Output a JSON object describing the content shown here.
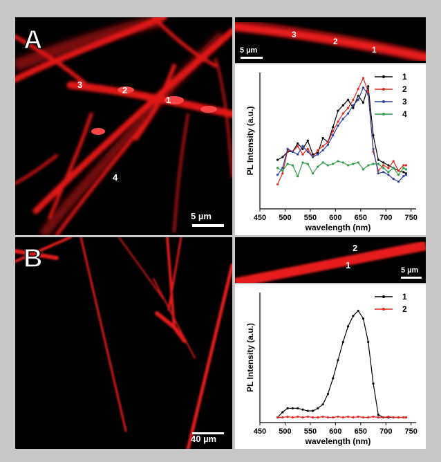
{
  "panel_a": {
    "letter": "A",
    "scale_main": "5 µm",
    "scale_inset": "5 µm",
    "main_points": [
      "3",
      "2",
      "1",
      "4"
    ],
    "inset_points": [
      "3",
      "2",
      "1"
    ]
  },
  "panel_b": {
    "letter": "B",
    "scale_main": "40 µm",
    "scale_inset": "5 µm",
    "inset_points": [
      "2",
      "1"
    ]
  },
  "chart_data": [
    {
      "type": "line",
      "xlabel": "wavelength (nm)",
      "ylabel": "PL Intensity (a.u.)",
      "xlim": [
        450,
        760
      ],
      "ylim": [
        0,
        1
      ],
      "xticks": [
        450,
        500,
        550,
        600,
        650,
        700,
        750
      ],
      "legend_position": "top-right",
      "series": [
        {
          "name": "1",
          "color": "#000000",
          "x": [
            485,
            495,
            505,
            515,
            525,
            535,
            545,
            555,
            565,
            575,
            585,
            595,
            605,
            615,
            625,
            635,
            645,
            655,
            665,
            675,
            685,
            695,
            705,
            715,
            725,
            735,
            740
          ],
          "y": [
            0.36,
            0.38,
            0.42,
            0.42,
            0.48,
            0.44,
            0.5,
            0.4,
            0.41,
            0.52,
            0.49,
            0.6,
            0.72,
            0.76,
            0.8,
            0.74,
            0.83,
            0.78,
            0.9,
            0.54,
            0.36,
            0.34,
            0.32,
            0.3,
            0.28,
            0.27,
            0.26
          ]
        },
        {
          "name": "2",
          "color": "#e0281e",
          "x": [
            485,
            495,
            505,
            515,
            525,
            535,
            545,
            555,
            565,
            575,
            585,
            595,
            605,
            615,
            625,
            635,
            645,
            655,
            665,
            675,
            685,
            695,
            705,
            715,
            725,
            735,
            740
          ],
          "y": [
            0.18,
            0.26,
            0.43,
            0.42,
            0.46,
            0.4,
            0.44,
            0.38,
            0.43,
            0.46,
            0.49,
            0.57,
            0.64,
            0.7,
            0.74,
            0.8,
            0.88,
            0.96,
            0.86,
            0.42,
            0.28,
            0.32,
            0.3,
            0.35,
            0.28,
            0.32,
            0.32
          ]
        },
        {
          "name": "3",
          "color": "#2f3f9e",
          "x": [
            485,
            495,
            505,
            515,
            525,
            535,
            545,
            555,
            565,
            575,
            585,
            595,
            605,
            615,
            625,
            635,
            645,
            655,
            665,
            675,
            685,
            695,
            705,
            715,
            725,
            735,
            740
          ],
          "y": [
            0.25,
            0.3,
            0.44,
            0.42,
            0.4,
            0.46,
            0.42,
            0.38,
            0.4,
            0.43,
            0.47,
            0.54,
            0.61,
            0.66,
            0.7,
            0.76,
            0.8,
            0.89,
            0.84,
            0.44,
            0.26,
            0.27,
            0.25,
            0.22,
            0.2,
            0.24,
            0.25
          ]
        },
        {
          "name": "4",
          "color": "#2e9c48",
          "x": [
            485,
            495,
            505,
            515,
            525,
            535,
            545,
            555,
            565,
            575,
            585,
            595,
            605,
            615,
            625,
            635,
            645,
            655,
            665,
            675,
            685,
            695,
            705,
            715,
            725,
            735,
            740
          ],
          "y": [
            0.3,
            0.28,
            0.33,
            0.32,
            0.24,
            0.34,
            0.33,
            0.26,
            0.31,
            0.34,
            0.32,
            0.33,
            0.35,
            0.34,
            0.32,
            0.33,
            0.34,
            0.29,
            0.32,
            0.33,
            0.33,
            0.3,
            0.27,
            0.3,
            0.25,
            0.3,
            0.29
          ]
        }
      ]
    },
    {
      "type": "line",
      "xlabel": "wavelength (nm)",
      "ylabel": "PL Intensity (a.u.)",
      "xlim": [
        450,
        760
      ],
      "ylim": [
        0,
        1
      ],
      "xticks": [
        450,
        500,
        550,
        600,
        650,
        700,
        750
      ],
      "legend_position": "top-right",
      "series": [
        {
          "name": "1",
          "color": "#000000",
          "x": [
            485,
            495,
            505,
            515,
            525,
            535,
            545,
            555,
            565,
            575,
            585,
            595,
            605,
            615,
            625,
            635,
            645,
            655,
            665,
            675,
            685,
            695,
            705,
            715,
            725,
            735,
            740
          ],
          "y": [
            0.04,
            0.08,
            0.11,
            0.11,
            0.11,
            0.1,
            0.09,
            0.09,
            0.11,
            0.14,
            0.22,
            0.34,
            0.48,
            0.62,
            0.74,
            0.82,
            0.86,
            0.8,
            0.62,
            0.3,
            0.06,
            0.04,
            0.04,
            0.04,
            0.04,
            0.04,
            0.04
          ]
        },
        {
          "name": "2",
          "color": "#e0281e",
          "x": [
            485,
            495,
            505,
            515,
            525,
            535,
            545,
            555,
            565,
            575,
            585,
            595,
            605,
            615,
            625,
            635,
            645,
            655,
            665,
            675,
            685,
            695,
            705,
            715,
            725,
            735,
            740
          ],
          "y": [
            0.04,
            0.04,
            0.045,
            0.04,
            0.045,
            0.04,
            0.045,
            0.04,
            0.04,
            0.045,
            0.04,
            0.04,
            0.045,
            0.04,
            0.045,
            0.04,
            0.045,
            0.04,
            0.04,
            0.045,
            0.04,
            0.04,
            0.045,
            0.04,
            0.04,
            0.04,
            0.04
          ]
        }
      ]
    }
  ]
}
